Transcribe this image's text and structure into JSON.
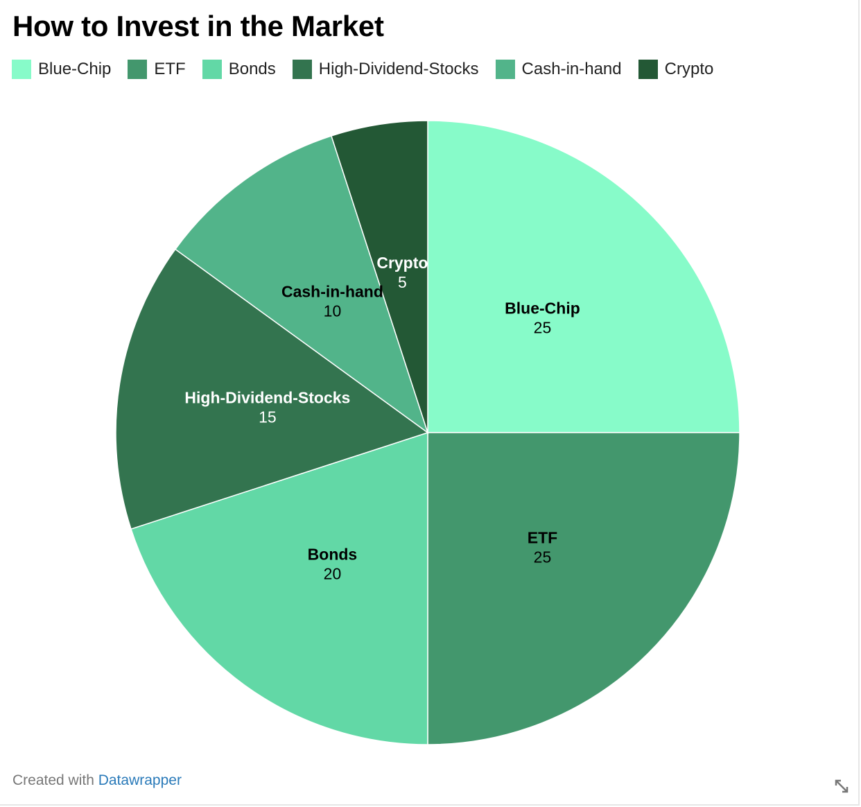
{
  "chart_data": {
    "type": "pie",
    "title": "How to Invest in the Market",
    "categories": [
      "Blue-Chip",
      "ETF",
      "Bonds",
      "High-Dividend-Stocks",
      "Cash-in-hand",
      "Crypto"
    ],
    "values": [
      25,
      25,
      20,
      15,
      10,
      5
    ],
    "colors": [
      "#87fbc9",
      "#43976d",
      "#62d8a6",
      "#33744f",
      "#52b48a",
      "#235835"
    ],
    "label_colors": [
      "#000000",
      "#000000",
      "#000000",
      "#ffffff",
      "#000000",
      "#ffffff"
    ],
    "legend_position": "top-left",
    "start": "12 o'clock, clockwise"
  },
  "footer": {
    "prefix": "Created with ",
    "link": "Datawrapper"
  },
  "icons": {
    "resize": "resize-diagonal-icon"
  }
}
